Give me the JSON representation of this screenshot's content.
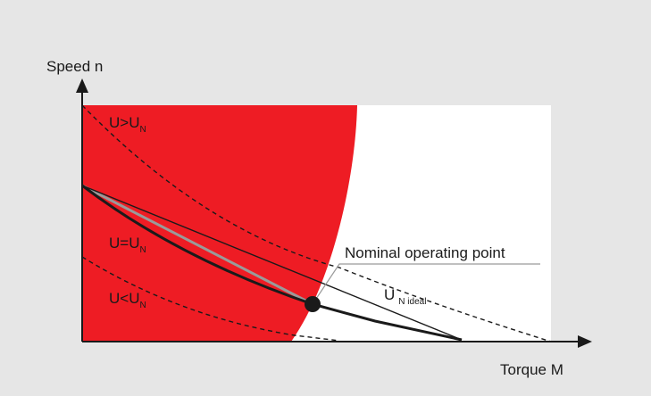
{
  "colors": {
    "background": "#e6e6e6",
    "plot_area": "#ffffff",
    "overload_region": "#ee1c24",
    "curves": "#1a1a1a",
    "ideal_line": "#9a9a9a",
    "leader_line": "#9a9a9a"
  },
  "axes": {
    "y_label": "Speed n",
    "x_label": "Torque M"
  },
  "curves": {
    "u_greater": {
      "main": "U>U",
      "sub": "N"
    },
    "u_equal": {
      "main": "U=U",
      "sub": "N"
    },
    "u_less": {
      "main": "U<U",
      "sub": "N"
    },
    "u_ideal": {
      "main": "U",
      "sub": "N ideal"
    }
  },
  "annotation": {
    "label": "Nominal operating point",
    "marker": "filled-circle"
  }
}
